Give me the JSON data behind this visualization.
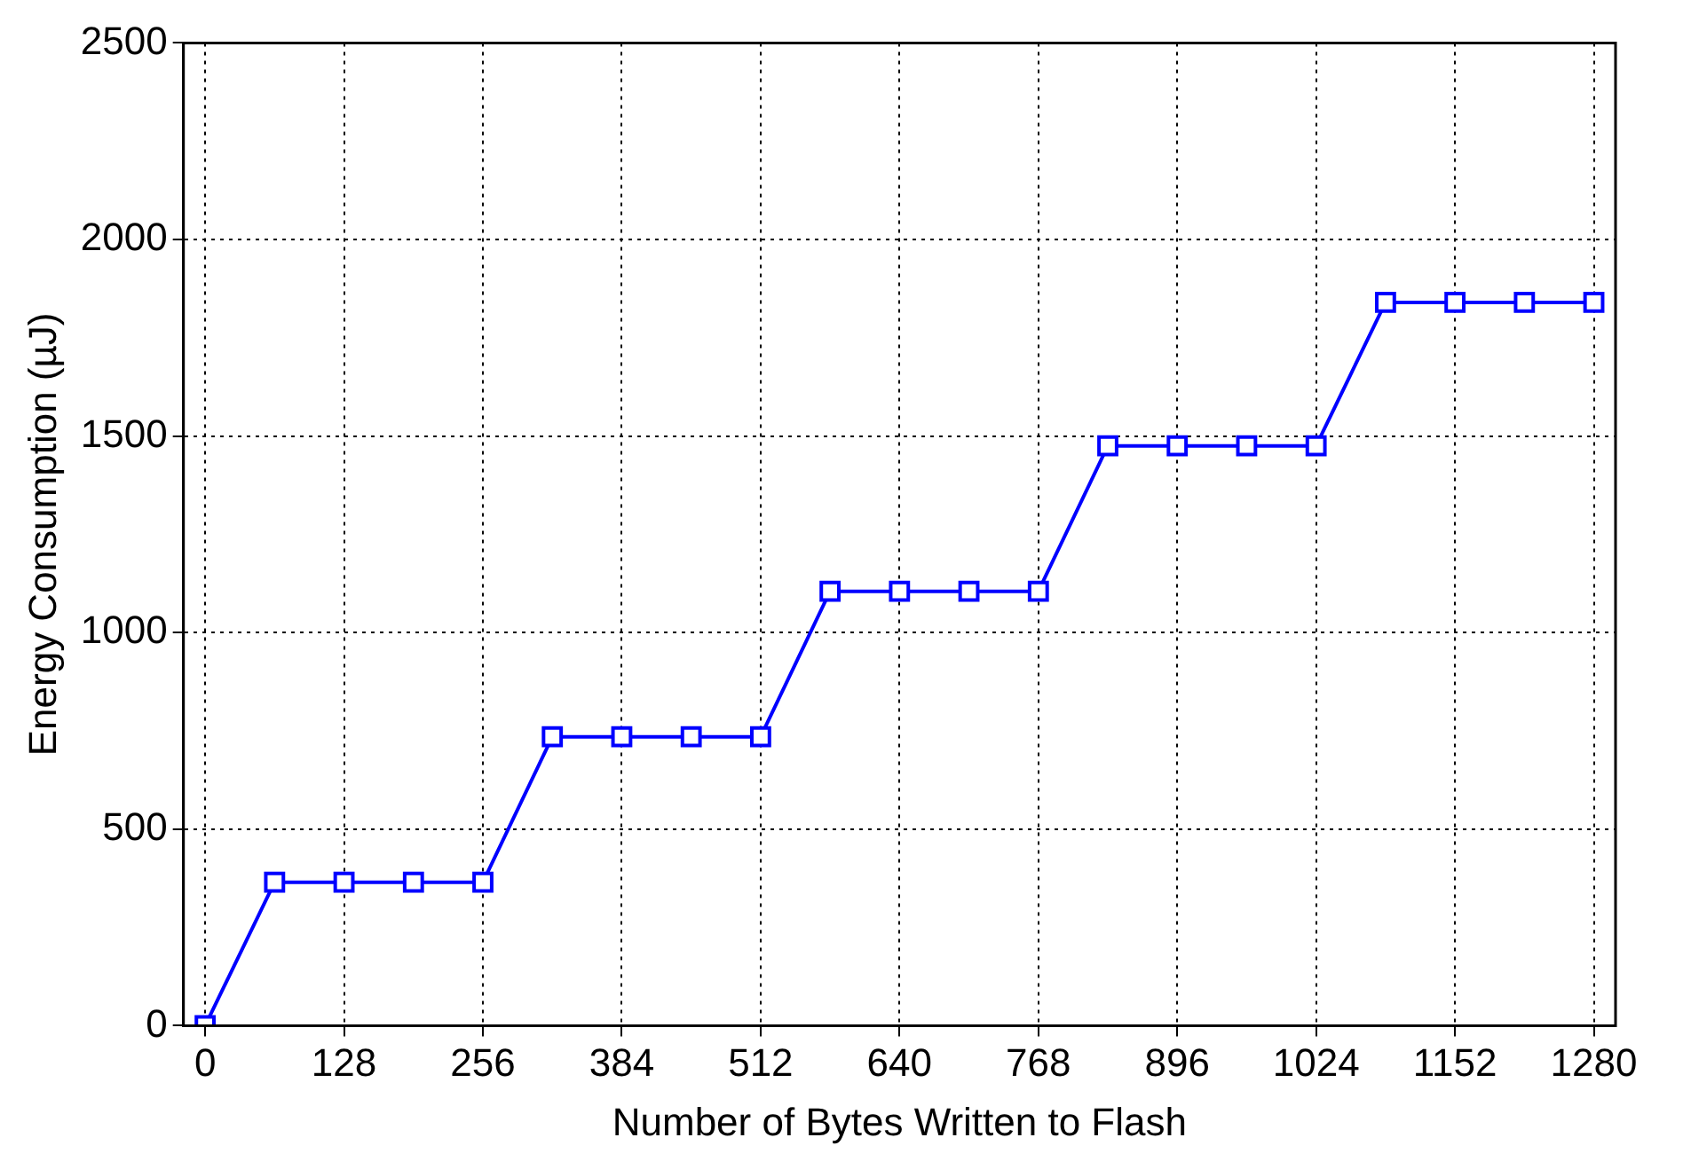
{
  "chart_data": {
    "type": "line",
    "xlabel": "Number of Bytes Written to Flash",
    "ylabel": "Energy Consumption (µJ)",
    "x": [
      0,
      64,
      128,
      192,
      256,
      320,
      384,
      448,
      512,
      576,
      640,
      704,
      768,
      832,
      896,
      960,
      1024,
      1088,
      1152,
      1216,
      1280
    ],
    "series": [
      {
        "color": "#0000ff",
        "values": [
          0,
          365,
          365,
          365,
          365,
          735,
          735,
          735,
          735,
          1105,
          1105,
          1105,
          1105,
          1475,
          1475,
          1475,
          1475,
          1840,
          1840,
          1840,
          1840
        ]
      }
    ],
    "xlim": [
      -20,
      1300
    ],
    "xticks": [
      0,
      128,
      256,
      384,
      512,
      640,
      768,
      896,
      1024,
      1152,
      1280
    ],
    "ylim": [
      0,
      2500
    ],
    "yticks": [
      0,
      500,
      1000,
      1500,
      2000,
      2500
    ],
    "grid": true,
    "legend": false,
    "marker": "square",
    "line_style": "solid"
  }
}
